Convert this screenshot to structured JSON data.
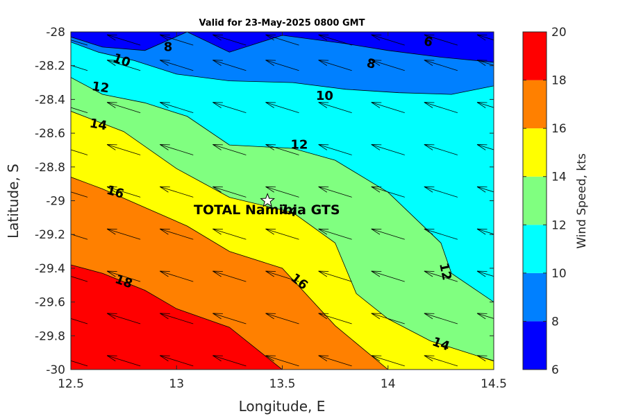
{
  "chart_data": {
    "type": "contour",
    "title": "Valid for 23-May-2025 0800 GMT",
    "xlabel": "Longitude, E",
    "ylabel": "Latitude, S",
    "colorbar_label": "Wind Speed, kts",
    "xlim": [
      12.5,
      14.5
    ],
    "ylim": [
      -30,
      -28
    ],
    "x_ticks": [
      "12.5",
      "13",
      "13.5",
      "14",
      "14.5"
    ],
    "x_tick_values": [
      12.5,
      13,
      13.5,
      14,
      14.5
    ],
    "y_ticks": [
      "-28",
      "-28.2",
      "-28.4",
      "-28.6",
      "-28.8",
      "-29",
      "-29.2",
      "-29.4",
      "-29.6",
      "-29.8",
      "-30"
    ],
    "y_tick_values": [
      -28,
      -28.2,
      -28.4,
      -28.6,
      -28.8,
      -29,
      -29.2,
      -29.4,
      -29.6,
      -29.8,
      -30
    ],
    "colorbar_ticks": [
      "6",
      "8",
      "10",
      "12",
      "14",
      "16",
      "18",
      "20"
    ],
    "levels": [
      6,
      8,
      10,
      12,
      14,
      16,
      18,
      20
    ],
    "level_colors": [
      "#0000ff",
      "#0080ff",
      "#00ffff",
      "#80ff80",
      "#ffff00",
      "#ff8000",
      "#ff0000"
    ],
    "contour_lines": [
      {
        "level": 8,
        "points": [
          [
            12.5,
            -28.03
          ],
          [
            12.65,
            -28.09
          ],
          [
            12.85,
            -28.11
          ],
          [
            13.05,
            -28.0
          ],
          [
            13.25,
            -28.12
          ],
          [
            13.5,
            -28.02
          ],
          [
            13.8,
            -28.07
          ],
          [
            14.0,
            -28.11
          ],
          [
            14.25,
            -28.15
          ],
          [
            14.5,
            -28.18
          ]
        ]
      },
      {
        "level": 10,
        "points": [
          [
            12.5,
            -28.06
          ],
          [
            12.63,
            -28.12
          ],
          [
            12.8,
            -28.17
          ],
          [
            13.0,
            -28.25
          ],
          [
            13.25,
            -28.29
          ],
          [
            13.55,
            -28.3
          ],
          [
            13.8,
            -28.34
          ],
          [
            14.05,
            -28.36
          ],
          [
            14.3,
            -28.37
          ],
          [
            14.5,
            -28.32
          ]
        ]
      },
      {
        "level": 12,
        "points": [
          [
            12.5,
            -28.27
          ],
          [
            12.65,
            -28.37
          ],
          [
            12.85,
            -28.42
          ],
          [
            13.05,
            -28.5
          ],
          [
            13.25,
            -28.67
          ],
          [
            13.55,
            -28.69
          ],
          [
            13.75,
            -28.76
          ],
          [
            14.0,
            -28.95
          ],
          [
            14.25,
            -29.25
          ],
          [
            14.3,
            -29.43
          ],
          [
            14.5,
            -29.6
          ]
        ]
      },
      {
        "level": 14,
        "points": [
          [
            12.5,
            -28.47
          ],
          [
            12.75,
            -28.59
          ],
          [
            13.0,
            -28.81
          ],
          [
            13.25,
            -28.98
          ],
          [
            13.55,
            -29.07
          ],
          [
            13.75,
            -29.25
          ],
          [
            13.85,
            -29.55
          ],
          [
            14.0,
            -29.7
          ],
          [
            14.2,
            -29.83
          ],
          [
            14.5,
            -29.95
          ]
        ]
      },
      {
        "level": 16,
        "points": [
          [
            12.5,
            -28.86
          ],
          [
            12.65,
            -28.93
          ],
          [
            12.85,
            -29.04
          ],
          [
            13.05,
            -29.15
          ],
          [
            13.25,
            -29.3
          ],
          [
            13.5,
            -29.4
          ],
          [
            13.75,
            -29.74
          ],
          [
            14.0,
            -30.0
          ]
        ]
      },
      {
        "level": 18,
        "points": [
          [
            12.5,
            -29.38
          ],
          [
            12.65,
            -29.43
          ],
          [
            12.85,
            -29.53
          ],
          [
            13.0,
            -29.64
          ],
          [
            13.25,
            -29.75
          ],
          [
            13.5,
            -30.0
          ]
        ]
      }
    ],
    "contour_labels": [
      {
        "text": "6",
        "lon": 14.19,
        "lat": -28.06,
        "angle": 12
      },
      {
        "text": "8",
        "lon": 12.96,
        "lat": -28.09,
        "angle": 0
      },
      {
        "text": "8",
        "lon": 13.92,
        "lat": -28.19,
        "angle": 12
      },
      {
        "text": "10",
        "lon": 12.74,
        "lat": -28.17,
        "angle": 20
      },
      {
        "text": "10",
        "lon": 13.7,
        "lat": -28.38,
        "angle": 0
      },
      {
        "text": "12",
        "lon": 12.64,
        "lat": -28.33,
        "angle": 8
      },
      {
        "text": "12",
        "lon": 13.58,
        "lat": -28.67,
        "angle": 0
      },
      {
        "text": "12",
        "lon": 14.27,
        "lat": -29.42,
        "angle": 78
      },
      {
        "text": "14",
        "lon": 12.63,
        "lat": -28.55,
        "angle": 10
      },
      {
        "text": "14",
        "lon": 13.53,
        "lat": -29.06,
        "angle": 14
      },
      {
        "text": "14",
        "lon": 14.25,
        "lat": -29.85,
        "angle": 20
      },
      {
        "text": "16",
        "lon": 12.71,
        "lat": -28.95,
        "angle": 16
      },
      {
        "text": "16",
        "lon": 13.58,
        "lat": -29.48,
        "angle": 38
      },
      {
        "text": "18",
        "lon": 12.75,
        "lat": -29.48,
        "angle": 20
      }
    ],
    "site": {
      "name": "TOTAL Namibia GTS",
      "lon": 13.43,
      "lat": -29.0
    },
    "vector_grid": {
      "lons": [
        12.5,
        12.75,
        13.0,
        13.25,
        13.5,
        13.75,
        14.0,
        14.25,
        14.5
      ],
      "lats": [
        -28.05,
        -28.2,
        -28.45,
        -28.7,
        -28.95,
        -29.2,
        -29.45,
        -29.7,
        -29.95
      ],
      "direction": "from east-southeast"
    },
    "grid": false,
    "colorbar_position": "right"
  }
}
